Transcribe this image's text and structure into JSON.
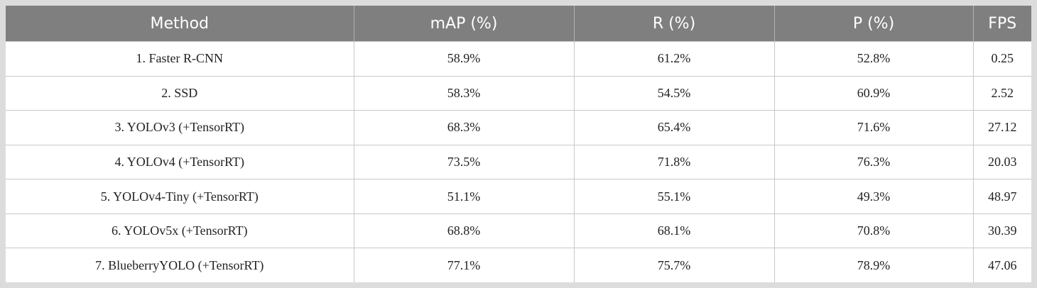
{
  "table": {
    "headers": [
      "Method",
      "mAP (%)",
      "R (%)",
      "P (%)",
      "FPS"
    ],
    "rows": [
      [
        "1. Faster R-CNN",
        "58.9%",
        "61.2%",
        "52.8%",
        "0.25"
      ],
      [
        "2. SSD",
        "58.3%",
        "54.5%",
        "60.9%",
        "2.52"
      ],
      [
        "3. YOLOv3 (+TensorRT)",
        "68.3%",
        "65.4%",
        "71.6%",
        "27.12"
      ],
      [
        "4. YOLOv4 (+TensorRT)",
        "73.5%",
        "71.8%",
        "76.3%",
        "20.03"
      ],
      [
        "5. YOLOv4-Tiny (+TensorRT)",
        "51.1%",
        "55.1%",
        "49.3%",
        "48.97"
      ],
      [
        "6. YOLOv5x (+TensorRT)",
        "68.8%",
        "68.1%",
        "70.8%",
        "30.39"
      ],
      [
        "7. BlueberryYOLO (+TensorRT)",
        "77.1%",
        "75.7%",
        "78.9%",
        "47.06"
      ]
    ]
  },
  "colors": {
    "header_background": "#7f7f7f",
    "header_text": "#ffffff",
    "page_background": "#dcdcdc"
  }
}
